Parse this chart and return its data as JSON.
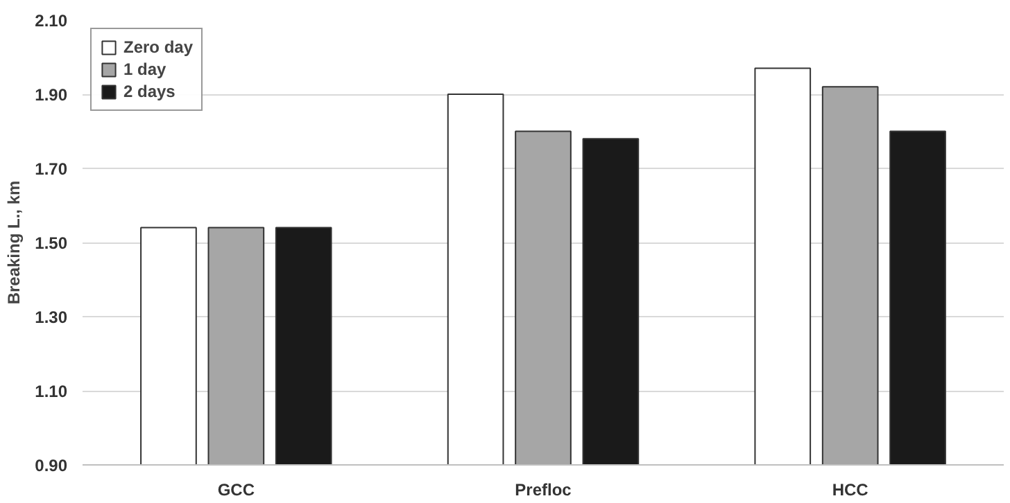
{
  "chart_data": {
    "type": "bar",
    "ylabel": "Breaking L., km",
    "categories": [
      "GCC",
      "Prefloc",
      "HCC"
    ],
    "series": [
      {
        "name": "Zero day",
        "color": "#ffffff",
        "values": [
          1.54,
          1.9,
          1.97
        ]
      },
      {
        "name": "1 day",
        "color": "#a6a6a6",
        "values": [
          1.54,
          1.8,
          1.92
        ]
      },
      {
        "name": "2 days",
        "color": "#1a1a1a",
        "values": [
          1.54,
          1.78,
          1.8
        ]
      }
    ],
    "ylim": [
      0.9,
      2.1
    ],
    "yticks": [
      {
        "value": 0.9,
        "label": "0.90"
      },
      {
        "value": 1.1,
        "label": "1.10"
      },
      {
        "value": 1.3,
        "label": "1.30"
      },
      {
        "value": 1.5,
        "label": "1.50"
      },
      {
        "value": 1.7,
        "label": "1.70"
      },
      {
        "value": 1.9,
        "label": "1.90"
      },
      {
        "value": 2.1,
        "label": "2.10"
      }
    ],
    "grid": "y",
    "legend": "top left"
  }
}
